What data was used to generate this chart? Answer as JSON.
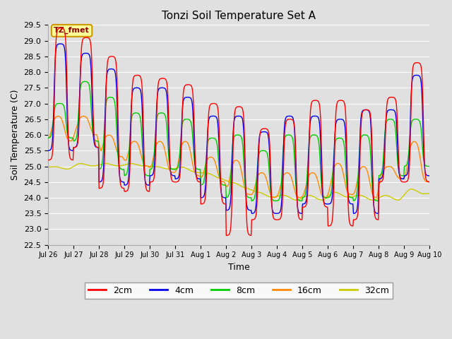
{
  "title": "Tonzi Soil Temperature Set A",
  "xlabel": "Time",
  "ylabel": "Soil Temperature (C)",
  "ylim": [
    22.5,
    29.5
  ],
  "background_color": "#e0e0e0",
  "plot_bg_color": "#e0e0e0",
  "grid_color": "#ffffff",
  "line_colors": {
    "2cm": "#ff0000",
    "4cm": "#0000ee",
    "8cm": "#00cc00",
    "16cm": "#ff8800",
    "32cm": "#cccc00"
  },
  "xtick_labels": [
    "Jul 26",
    "Jul 27",
    "Jul 28",
    "Jul 29",
    "Jul 30",
    "Jul 31",
    "Aug 1",
    "Aug 2",
    "Aug 3",
    "Aug 4",
    "Aug 5",
    "Aug 6",
    "Aug 7",
    "Aug 8",
    "Aug 9",
    "Aug 10"
  ],
  "yticks": [
    22.5,
    23.0,
    23.5,
    24.0,
    24.5,
    25.0,
    25.5,
    26.0,
    26.5,
    27.0,
    27.5,
    28.0,
    28.5,
    29.0,
    29.5
  ],
  "annotation_text": "TZ_fmet",
  "annotation_bg": "#ffff99",
  "annotation_border": "#cc9900",
  "annotation_text_color": "#8B0000",
  "n_days": 15,
  "figsize": [
    6.4,
    4.8
  ],
  "dpi": 100
}
